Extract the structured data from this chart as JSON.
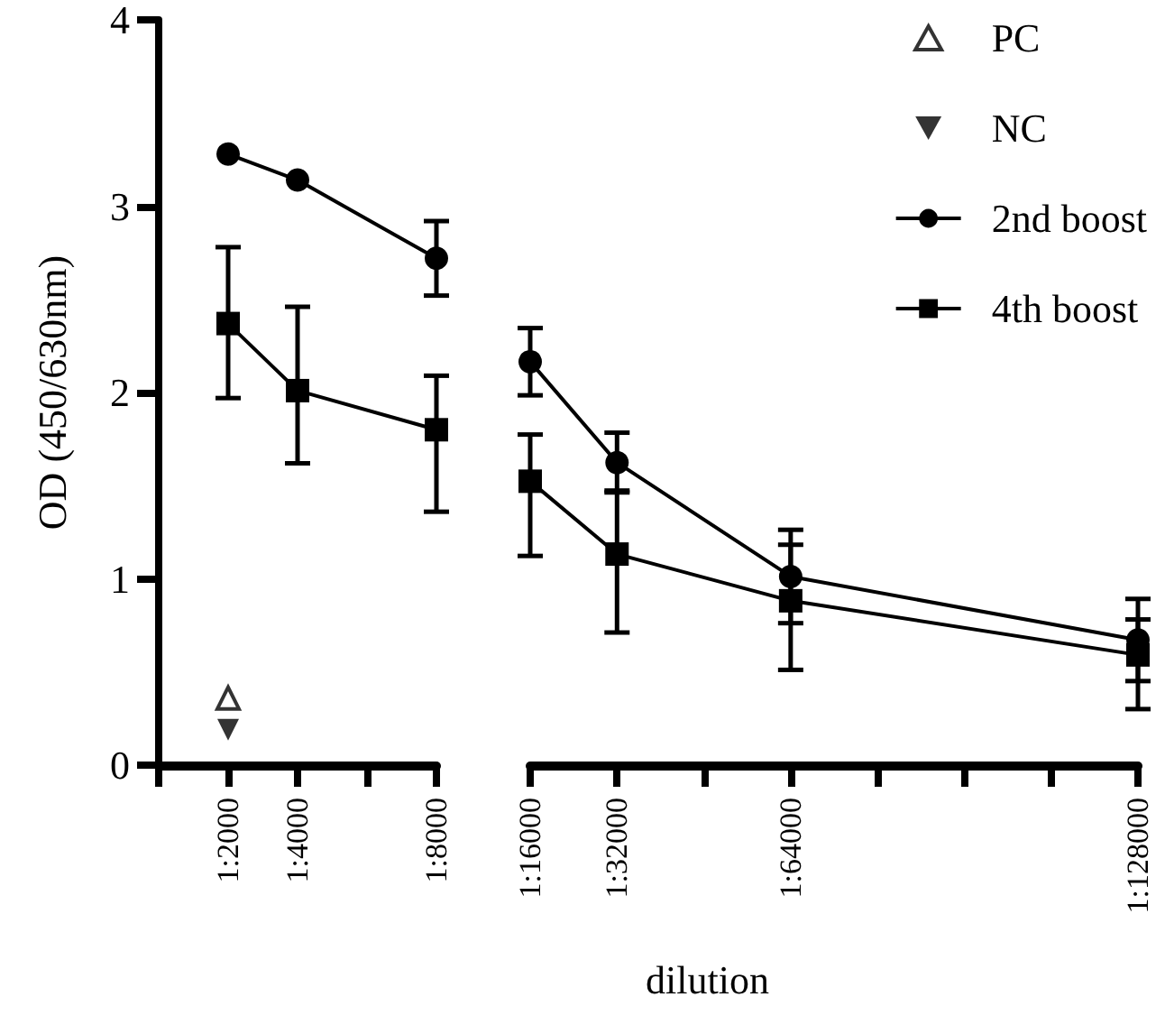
{
  "chart_data": [
    {
      "type": "line",
      "ylabel": "OD (450/630nm)",
      "categories": [
        null,
        "1:2000",
        "1:4000",
        null,
        "1:8000"
      ],
      "ylim": [
        0,
        4
      ],
      "yticks": [
        0,
        1,
        2,
        3,
        4
      ],
      "legend": "top right",
      "series": [
        {
          "name": "PC",
          "type": "scatter",
          "marker": "triangle-open",
          "color": "#000000",
          "x": [
            "1:2000"
          ],
          "values": [
            0.36
          ]
        },
        {
          "name": "NC",
          "type": "scatter",
          "marker": "triangle-down",
          "color": "#000000",
          "x": [
            "1:2000"
          ],
          "values": [
            0.19
          ]
        },
        {
          "name": "2nd boost",
          "marker": "circle",
          "color": "#000000",
          "x": [
            "1:2000",
            "1:4000",
            "1:8000"
          ],
          "values": [
            3.28,
            3.14,
            2.72
          ],
          "errors": [
            null,
            null,
            0.2
          ]
        },
        {
          "name": "4th boost",
          "marker": "square",
          "color": "#000000",
          "x": [
            "1:2000",
            "1:4000",
            "1:8000"
          ],
          "values": [
            2.37,
            2.01,
            1.8
          ],
          "errors": [
            [
              1.97,
              2.78
            ],
            [
              1.62,
              2.46
            ],
            [
              1.36,
              2.09
            ]
          ]
        }
      ]
    },
    {
      "type": "line",
      "xlabel": "dilution",
      "categories": [
        "1:16000",
        "1:32000",
        null,
        "1:64000",
        null,
        null,
        null,
        "1:128000"
      ],
      "ylim": [
        0,
        4
      ],
      "tick_labels": "x",
      "series": [
        {
          "marker": "circle",
          "color": "#000000",
          "x": [
            "1:16000",
            "1:32000",
            "1:64000",
            "1:128000"
          ],
          "values": [
            2.16,
            1.62,
            1.01,
            0.67
          ],
          "errors": [
            0.18,
            0.16,
            0.25,
            0.22
          ]
        },
        {
          "marker": "square",
          "color": "#000000",
          "x": [
            "1:16000",
            "1:32000",
            "1:64000",
            "1:128000"
          ],
          "values": [
            1.52,
            1.13,
            0.88,
            0.59
          ],
          "errors": [
            [
              1.12,
              1.77
            ],
            [
              0.71,
              1.47
            ],
            [
              0.51,
              1.18
            ],
            [
              0.3,
              0.78
            ]
          ]
        }
      ]
    }
  ]
}
